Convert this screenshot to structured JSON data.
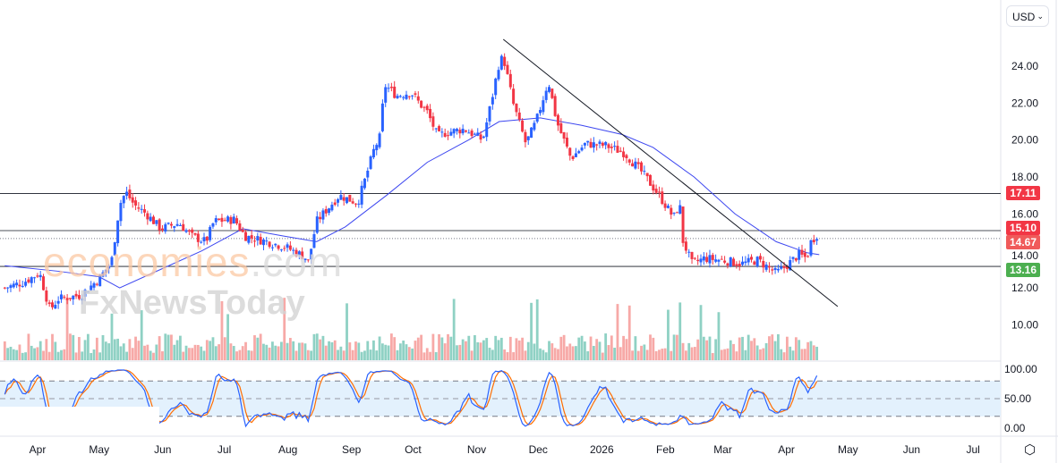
{
  "currency_selector": "USD",
  "watermark": {
    "line1": "economies",
    "line1_suffix": ".com",
    "line2": "FxNewsToday"
  },
  "price_tags": [
    {
      "label": "17.11",
      "value": 17.11,
      "color": "#f23645"
    },
    {
      "label": "15.10",
      "value": 15.1,
      "color": "#f23645"
    },
    {
      "label": "14.67",
      "value": 14.67,
      "color": "#f05a5a"
    },
    {
      "label": "13.16",
      "value": 13.16,
      "color": "#4caf50"
    }
  ],
  "colors": {
    "up": "#2962ff",
    "down": "#f23645",
    "vol_up": "#8fd1c4",
    "vol_down": "#f7a9a7",
    "ma": "#3d47f0",
    "k": "#2962ff",
    "d": "#ff6d00",
    "band": "#e3f1fd"
  },
  "chart_data": {
    "type": "candlestick",
    "title": "",
    "y_ticks": [
      "10.00",
      "12.00",
      "14.00",
      "16.00",
      "18.00",
      "20.00",
      "22.00",
      "24.00"
    ],
    "ylim": [
      9,
      26
    ],
    "osc_ticks": [
      "0.00",
      "50.00",
      "100.00"
    ],
    "osc_levels": [
      20,
      50,
      80
    ],
    "x_ticks": [
      {
        "label": "Apr",
        "day": 0
      },
      {
        "label": "May",
        "day": 30
      },
      {
        "label": "Jun",
        "day": 61
      },
      {
        "label": "Jul",
        "day": 91
      },
      {
        "label": "Aug",
        "day": 122
      },
      {
        "label": "Sep",
        "day": 153
      },
      {
        "label": "Oct",
        "day": 183
      },
      {
        "label": "Nov",
        "day": 214
      },
      {
        "label": "Dec",
        "day": 244
      },
      {
        "label": "2026",
        "day": 275
      },
      {
        "label": "Feb",
        "day": 306
      },
      {
        "label": "Mar",
        "day": 334
      },
      {
        "label": "Apr",
        "day": 365
      },
      {
        "label": "May",
        "day": 395
      },
      {
        "label": "Jun",
        "day": 426
      },
      {
        "label": "Jul",
        "day": 456
      }
    ],
    "x_range_days": [
      -18,
      470
    ],
    "price_path": [
      [
        -16,
        12.0
      ],
      [
        -7,
        12.3
      ],
      [
        1,
        12.8
      ],
      [
        6,
        10.8
      ],
      [
        10,
        11.4
      ],
      [
        21,
        11.6
      ],
      [
        30,
        12.5
      ],
      [
        36,
        13.4
      ],
      [
        40,
        16.5
      ],
      [
        43,
        17.2
      ],
      [
        47,
        16.5
      ],
      [
        53,
        16.0
      ],
      [
        60,
        15.2
      ],
      [
        69,
        15.5
      ],
      [
        75,
        14.8
      ],
      [
        82,
        14.5
      ],
      [
        86,
        15.6
      ],
      [
        96,
        15.7
      ],
      [
        101,
        14.8
      ],
      [
        112,
        14.5
      ],
      [
        121,
        14.2
      ],
      [
        130,
        13.7
      ],
      [
        132,
        13.4
      ],
      [
        136,
        15.6
      ],
      [
        143,
        16.5
      ],
      [
        147,
        17.0
      ],
      [
        156,
        16.6
      ],
      [
        160,
        18.0
      ],
      [
        164,
        19.5
      ],
      [
        167,
        20.2
      ],
      [
        169,
        23.0
      ],
      [
        175,
        22.4
      ],
      [
        182,
        22.6
      ],
      [
        186,
        22.0
      ],
      [
        190,
        21.5
      ],
      [
        195,
        20.2
      ],
      [
        199,
        20.4
      ],
      [
        208,
        20.6
      ],
      [
        217,
        20.0
      ],
      [
        221,
        22.0
      ],
      [
        225,
        24.2
      ],
      [
        227,
        24.5
      ],
      [
        232,
        21.9
      ],
      [
        238,
        19.8
      ],
      [
        243,
        21.0
      ],
      [
        249,
        23.2
      ],
      [
        253,
        21.0
      ],
      [
        260,
        19.0
      ],
      [
        267,
        19.8
      ],
      [
        277,
        19.7
      ],
      [
        286,
        19.3
      ],
      [
        295,
        18.2
      ],
      [
        303,
        17.0
      ],
      [
        310,
        15.8
      ],
      [
        313,
        16.6
      ],
      [
        314,
        14.7
      ],
      [
        319,
        13.3
      ],
      [
        325,
        13.6
      ],
      [
        334,
        13.5
      ],
      [
        343,
        13.3
      ],
      [
        351,
        13.5
      ],
      [
        360,
        12.8
      ],
      [
        364,
        13.1
      ],
      [
        371,
        13.8
      ],
      [
        375,
        13.6
      ],
      [
        377,
        14.5
      ],
      [
        380,
        14.9
      ],
      [
        381,
        14.8
      ]
    ],
    "moving_average": [
      [
        -16,
        13.2
      ],
      [
        10,
        12.9
      ],
      [
        30,
        12.6
      ],
      [
        40,
        12.0
      ],
      [
        60,
        13.0
      ],
      [
        80,
        14.0
      ],
      [
        100,
        15.2
      ],
      [
        120,
        14.8
      ],
      [
        136,
        14.5
      ],
      [
        150,
        15.3
      ],
      [
        170,
        17.0
      ],
      [
        190,
        18.8
      ],
      [
        210,
        20.0
      ],
      [
        225,
        21.0
      ],
      [
        245,
        21.2
      ],
      [
        265,
        20.8
      ],
      [
        285,
        20.3
      ],
      [
        300,
        19.6
      ],
      [
        320,
        18.0
      ],
      [
        340,
        16.0
      ],
      [
        360,
        14.5
      ],
      [
        375,
        13.9
      ],
      [
        381,
        13.8
      ]
    ],
    "trendline": [
      [
        227,
        25.45
      ],
      [
        390,
        10.99
      ]
    ],
    "horizontal_lines": [
      17.11,
      15.1,
      14.67,
      13.16
    ]
  }
}
